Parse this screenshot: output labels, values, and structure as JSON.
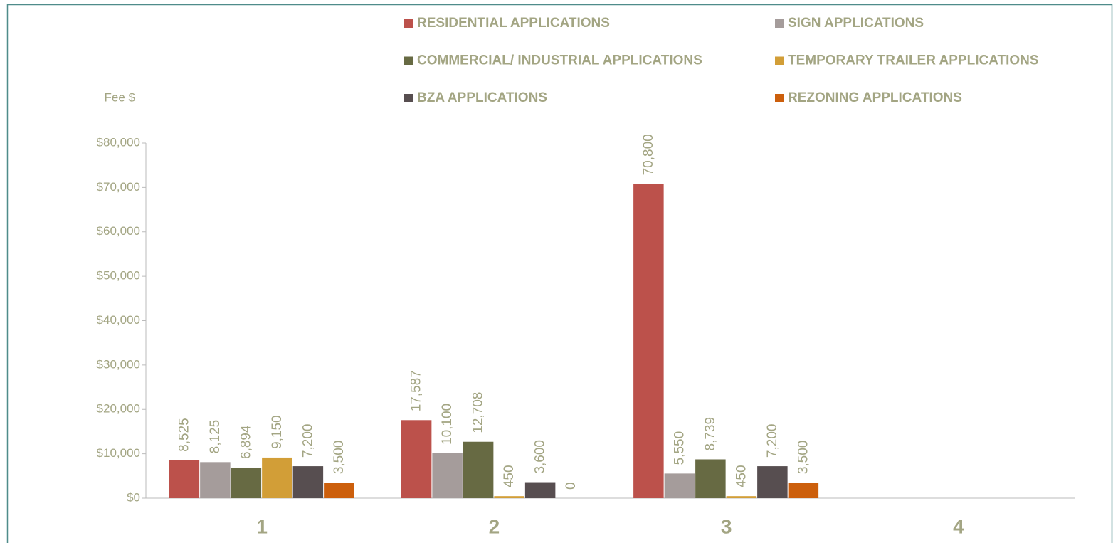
{
  "chart_data": {
    "type": "bar",
    "y_label": "Fee $",
    "categories": [
      "1",
      "2",
      "3",
      "4"
    ],
    "series": [
      {
        "name": "RESIDENTIAL APPLICATIONS",
        "color": "#bc514b",
        "values": [
          8525,
          17587,
          70800,
          null
        ],
        "value_labels": [
          "8,525",
          "17,587",
          "70,800",
          null
        ]
      },
      {
        "name": "SIGN APPLICATIONS",
        "color": "#a59c9b",
        "values": [
          8125,
          10100,
          5550,
          null
        ],
        "value_labels": [
          "8,125",
          "10,100",
          "5,550",
          null
        ]
      },
      {
        "name": "COMMERCIAL/ INDUSTRIAL APPLICATIONS",
        "color": "#676a43",
        "values": [
          6894,
          12708,
          8739,
          null
        ],
        "value_labels": [
          "6,894",
          "12,708",
          "8,739",
          null
        ]
      },
      {
        "name": "TEMPORARY TRAILER APPLICATIONS",
        "color": "#d29e37",
        "values": [
          9150,
          450,
          450,
          null
        ],
        "value_labels": [
          "9,150",
          "450",
          "450",
          null
        ]
      },
      {
        "name": "BZA APPLICATIONS",
        "color": "#574e50",
        "values": [
          7200,
          3600,
          7200,
          null
        ],
        "value_labels": [
          "7,200",
          "3,600",
          "7,200",
          null
        ]
      },
      {
        "name": "REZONING APPLICATIONS",
        "color": "#cc5f0c",
        "values": [
          3500,
          0,
          3500,
          null
        ],
        "value_labels": [
          "3,500",
          "0",
          "3,500",
          null
        ]
      }
    ],
    "ylim": [
      0,
      80000
    ],
    "yticks": [
      {
        "value": 0,
        "label": "$0"
      },
      {
        "value": 10000,
        "label": "$10,000"
      },
      {
        "value": 20000,
        "label": "$20,000"
      },
      {
        "value": 30000,
        "label": "$30,000"
      },
      {
        "value": 40000,
        "label": "$40,000"
      },
      {
        "value": 50000,
        "label": "$50,000"
      },
      {
        "value": 60000,
        "label": "$60,000"
      },
      {
        "value": 70000,
        "label": "$70,000"
      },
      {
        "value": 80000,
        "label": "$80,000"
      }
    ],
    "grid": false,
    "legend": "top"
  }
}
